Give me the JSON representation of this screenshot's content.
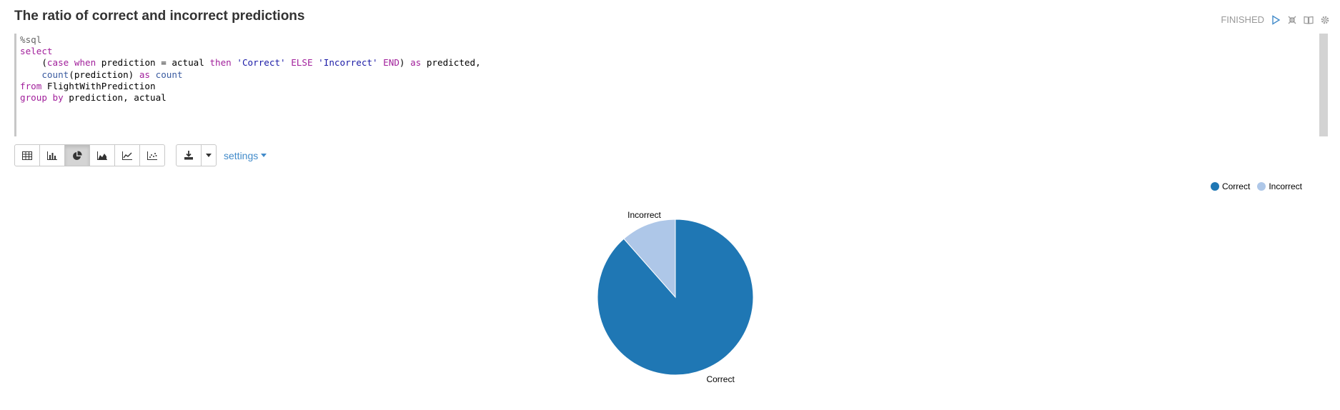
{
  "paragraph": {
    "title": "The ratio of correct and incorrect predictions",
    "status": "FINISHED"
  },
  "editor": {
    "lines": [
      "%sql",
      "select",
      "    (case when prediction = actual then 'Correct' ELSE 'Incorrect' END) as predicted,",
      "    count(prediction) as count",
      "from FlightWithPrediction",
      "group by prediction, actual"
    ]
  },
  "toolbar": {
    "view_buttons": [
      "table-icon",
      "bar-chart-icon",
      "pie-chart-icon",
      "area-chart-icon",
      "line-chart-icon",
      "scatter-chart-icon"
    ],
    "active_view": "pie-chart-icon",
    "settings_label": "settings"
  },
  "colors": {
    "correct": "#1f77b4",
    "incorrect": "#aec7e8"
  },
  "chart_data": {
    "type": "pie",
    "categories": [
      "Correct",
      "Incorrect"
    ],
    "values": [
      88.5,
      11.5
    ],
    "legend": [
      "Correct",
      "Incorrect"
    ],
    "legend_position": "top-right"
  }
}
